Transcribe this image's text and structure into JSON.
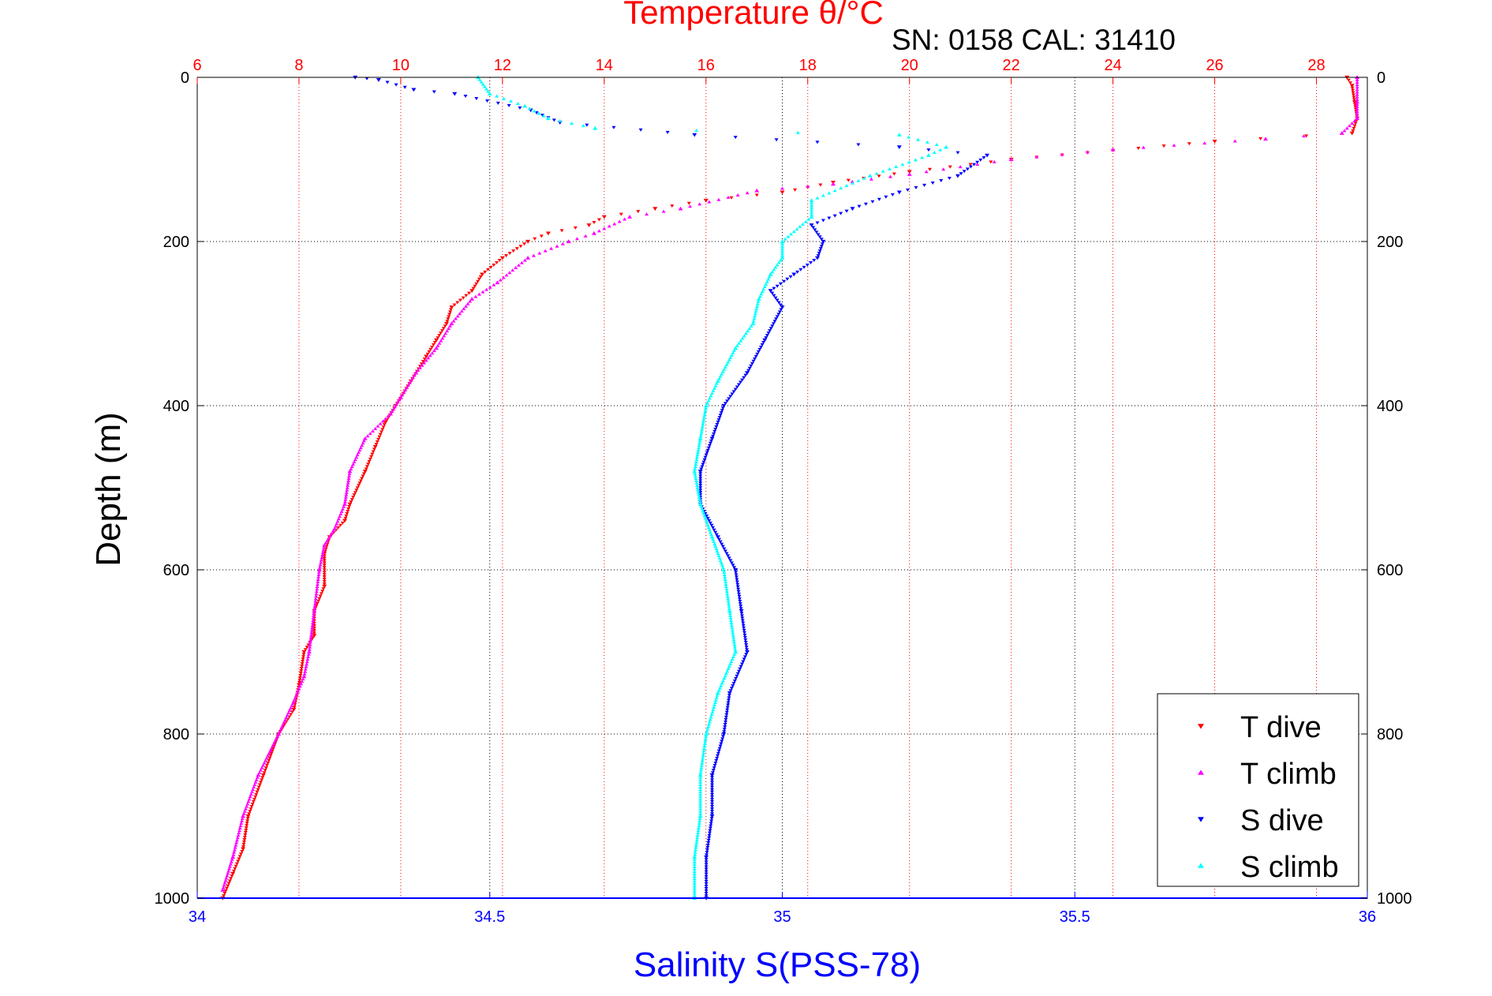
{
  "chart_data": {
    "type": "scatter",
    "title": "Temperature θ/°C",
    "annotation": "SN: 0158  CAL: 31410",
    "xlabel": "Salinity S(PSS-78)",
    "ylabel": "Depth (m)",
    "grid": true,
    "legend_position": "bottom-right",
    "axes": {
      "temperature": {
        "position": "top",
        "range": [
          6,
          29
        ],
        "ticks": [
          "6",
          "8",
          "10",
          "12",
          "14",
          "16",
          "18",
          "20",
          "22",
          "24",
          "26",
          "28"
        ],
        "color": "#ff0000"
      },
      "salinity": {
        "position": "bottom",
        "range": [
          34,
          36
        ],
        "ticks": [
          "34",
          "34.5",
          "35",
          "35.5",
          "36"
        ],
        "color": "#0000ff"
      },
      "depth": {
        "position": "left-and-right",
        "range": [
          0,
          1000
        ],
        "reversed": true,
        "ticks": [
          "0",
          "200",
          "400",
          "600",
          "800",
          "1000"
        ],
        "color": "#000000"
      }
    },
    "series": [
      {
        "name": "T dive",
        "axis": "temperature",
        "color": "#ff0000",
        "marker": "triangle-down",
        "points": [
          [
            28.6,
            0
          ],
          [
            28.7,
            10
          ],
          [
            28.75,
            30
          ],
          [
            28.8,
            50
          ],
          [
            28.7,
            68
          ],
          [
            26,
            78
          ],
          [
            22,
            100
          ],
          [
            20,
            115
          ],
          [
            18.5,
            128
          ],
          [
            17.5,
            140
          ],
          [
            16,
            150
          ],
          [
            15,
            160
          ],
          [
            14,
            170
          ],
          [
            13.7,
            180
          ],
          [
            12.9,
            190
          ],
          [
            12.5,
            200
          ],
          [
            12.0,
            220
          ],
          [
            11.6,
            240
          ],
          [
            11.4,
            260
          ],
          [
            11.0,
            280
          ],
          [
            10.9,
            300
          ],
          [
            10.7,
            320
          ],
          [
            10.5,
            340
          ],
          [
            10.2,
            370
          ],
          [
            9.9,
            400
          ],
          [
            9.7,
            420
          ],
          [
            9.5,
            450
          ],
          [
            9.3,
            480
          ],
          [
            9.0,
            520
          ],
          [
            8.9,
            540
          ],
          [
            8.6,
            560
          ],
          [
            8.5,
            580
          ],
          [
            8.5,
            620
          ],
          [
            8.3,
            650
          ],
          [
            8.3,
            680
          ],
          [
            8.1,
            700
          ],
          [
            8.0,
            740
          ],
          [
            7.9,
            770
          ],
          [
            7.6,
            800
          ],
          [
            7.3,
            850
          ],
          [
            7.0,
            900
          ],
          [
            6.9,
            940
          ],
          [
            6.7,
            970
          ],
          [
            6.5,
            1000
          ]
        ]
      },
      {
        "name": "T climb",
        "axis": "temperature",
        "color": "#ff00ff",
        "marker": "triangle-up",
        "points": [
          [
            28.8,
            0
          ],
          [
            28.8,
            30
          ],
          [
            28.8,
            50
          ],
          [
            28.5,
            68
          ],
          [
            27,
            75
          ],
          [
            24,
            88
          ],
          [
            22,
            100
          ],
          [
            20,
            118
          ],
          [
            18.5,
            130
          ],
          [
            17,
            138
          ],
          [
            15.5,
            160
          ],
          [
            14.5,
            170
          ],
          [
            13.8,
            190
          ],
          [
            13.3,
            200
          ],
          [
            12.5,
            220
          ],
          [
            11.9,
            250
          ],
          [
            11.4,
            270
          ],
          [
            11.0,
            300
          ],
          [
            10.7,
            330
          ],
          [
            10.3,
            360
          ],
          [
            10.0,
            390
          ],
          [
            9.8,
            410
          ],
          [
            9.3,
            440
          ],
          [
            9.0,
            480
          ],
          [
            8.9,
            520
          ],
          [
            8.7,
            550
          ],
          [
            8.5,
            570
          ],
          [
            8.4,
            600
          ],
          [
            8.3,
            650
          ],
          [
            8.2,
            700
          ],
          [
            8.1,
            730
          ],
          [
            7.9,
            760
          ],
          [
            7.6,
            800
          ],
          [
            7.2,
            850
          ],
          [
            6.9,
            900
          ],
          [
            6.7,
            950
          ],
          [
            6.5,
            990
          ]
        ]
      },
      {
        "name": "S dive",
        "axis": "salinity",
        "color": "#0000ff",
        "marker": "triangle-down",
        "points": [
          [
            34.27,
            0
          ],
          [
            34.31,
            3
          ],
          [
            34.37,
            15
          ],
          [
            34.44,
            20
          ],
          [
            34.57,
            40
          ],
          [
            34.62,
            55
          ],
          [
            34.85,
            70
          ],
          [
            35.2,
            85
          ],
          [
            35.35,
            95
          ],
          [
            35.3,
            120
          ],
          [
            35.2,
            140
          ],
          [
            35.12,
            160
          ],
          [
            35.05,
            180
          ],
          [
            35.07,
            200
          ],
          [
            35.06,
            220
          ],
          [
            35.02,
            240
          ],
          [
            34.98,
            260
          ],
          [
            35.0,
            280
          ],
          [
            34.97,
            320
          ],
          [
            34.94,
            360
          ],
          [
            34.9,
            400
          ],
          [
            34.88,
            440
          ],
          [
            34.86,
            480
          ],
          [
            34.86,
            520
          ],
          [
            34.89,
            560
          ],
          [
            34.92,
            600
          ],
          [
            34.93,
            650
          ],
          [
            34.94,
            700
          ],
          [
            34.91,
            750
          ],
          [
            34.9,
            800
          ],
          [
            34.88,
            850
          ],
          [
            34.88,
            900
          ],
          [
            34.87,
            950
          ],
          [
            34.87,
            1000
          ]
        ]
      },
      {
        "name": "S climb",
        "axis": "salinity",
        "color": "#00ffff",
        "marker": "triangle-up",
        "points": [
          [
            34.48,
            0
          ],
          [
            34.5,
            20
          ],
          [
            34.56,
            35
          ],
          [
            34.6,
            50
          ],
          [
            34.68,
            62
          ],
          [
            35.2,
            70
          ],
          [
            35.28,
            85
          ],
          [
            35.25,
            95
          ],
          [
            35.15,
            120
          ],
          [
            35.05,
            150
          ],
          [
            35.05,
            170
          ],
          [
            35.0,
            200
          ],
          [
            35.0,
            220
          ],
          [
            34.98,
            240
          ],
          [
            34.96,
            270
          ],
          [
            34.95,
            300
          ],
          [
            34.92,
            330
          ],
          [
            34.89,
            370
          ],
          [
            34.87,
            400
          ],
          [
            34.86,
            440
          ],
          [
            34.85,
            480
          ],
          [
            34.86,
            520
          ],
          [
            34.88,
            560
          ],
          [
            34.9,
            600
          ],
          [
            34.91,
            650
          ],
          [
            34.92,
            700
          ],
          [
            34.89,
            750
          ],
          [
            34.87,
            800
          ],
          [
            34.86,
            850
          ],
          [
            34.86,
            900
          ],
          [
            34.85,
            950
          ],
          [
            34.85,
            1000
          ]
        ]
      }
    ]
  }
}
